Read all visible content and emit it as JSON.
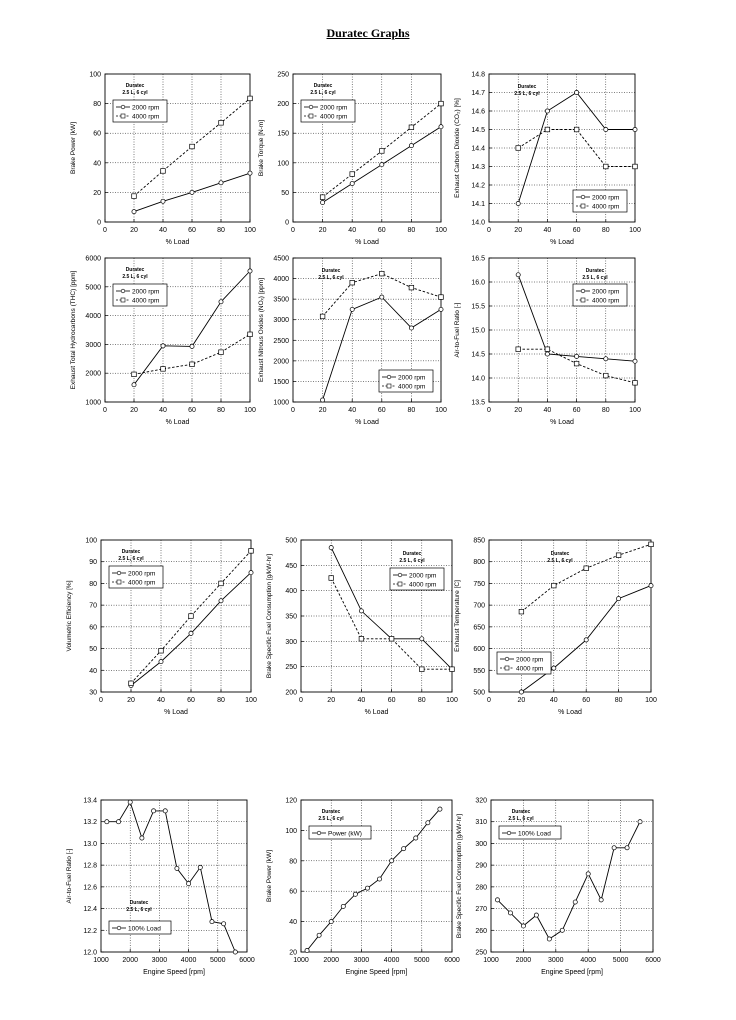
{
  "page": {
    "title": "Duratec Graphs"
  },
  "chart_data": [
    {
      "type": "line",
      "xlabel": "% Load",
      "ylabel": "Brake Power [kW]",
      "xlim": [
        0,
        100
      ],
      "ylim": [
        0,
        100
      ],
      "xticks": [
        0,
        20,
        40,
        60,
        80,
        100
      ],
      "yticks": [
        0,
        20,
        40,
        60,
        80,
        100
      ],
      "annotation": [
        "Duratec",
        "2.5 L, 6 cyl"
      ],
      "legend_pos": "upper-left",
      "x": [
        20,
        40,
        60,
        80,
        100
      ],
      "series": [
        {
          "name": "2000 rpm",
          "style": "solid",
          "marker": "circle",
          "values": [
            7,
            14,
            20,
            26.5,
            33
          ]
        },
        {
          "name": "4000 rpm",
          "style": "dashed",
          "marker": "square",
          "values": [
            17.5,
            34.5,
            51,
            67,
            83.5
          ]
        }
      ]
    },
    {
      "type": "line",
      "xlabel": "% Load",
      "ylabel": "Brake Torque [N-m]",
      "xlim": [
        0,
        100
      ],
      "ylim": [
        0,
        250
      ],
      "xticks": [
        0,
        20,
        40,
        60,
        80,
        100
      ],
      "yticks": [
        0,
        50,
        100,
        150,
        200,
        250
      ],
      "annotation": [
        "Duratec",
        "2.5 L, 6 cyl"
      ],
      "legend_pos": "upper-left",
      "x": [
        20,
        40,
        60,
        80,
        100
      ],
      "series": [
        {
          "name": "2000 rpm",
          "style": "solid",
          "marker": "circle",
          "values": [
            33,
            65,
            97,
            129,
            161
          ]
        },
        {
          "name": "4000 rpm",
          "style": "dashed",
          "marker": "square",
          "values": [
            42,
            81,
            120,
            160,
            200
          ]
        }
      ]
    },
    {
      "type": "line",
      "xlabel": "% Load",
      "ylabel": "Exhaust Carbon Dioxide (CO₂) [%]",
      "xlim": [
        0,
        100
      ],
      "ylim": [
        14,
        14.8
      ],
      "xticks": [
        0,
        20,
        40,
        60,
        80,
        100
      ],
      "yticks": [
        14,
        14.1,
        14.2,
        14.3,
        14.4,
        14.5,
        14.6,
        14.7,
        14.8
      ],
      "ydec": 1,
      "annotation": [
        "Duratec",
        "2.5 L, 6 cyl"
      ],
      "legend_pos": "lower-right",
      "x": [
        20,
        40,
        60,
        80,
        100
      ],
      "series": [
        {
          "name": "2000 rpm",
          "style": "solid",
          "marker": "circle",
          "values": [
            14.1,
            14.6,
            14.7,
            14.5,
            14.5
          ]
        },
        {
          "name": "4000 rpm",
          "style": "dashed",
          "marker": "square",
          "values": [
            14.4,
            14.5,
            14.5,
            14.3,
            14.3
          ]
        }
      ]
    },
    {
      "type": "line",
      "xlabel": "% Load",
      "ylabel": "Exhaust Total Hydrocarbons (THC) [ppm]",
      "xlim": [
        0,
        100
      ],
      "ylim": [
        1000,
        6000
      ],
      "xticks": [
        0,
        20,
        40,
        60,
        80,
        100
      ],
      "yticks": [
        1000,
        2000,
        3000,
        4000,
        5000,
        6000
      ],
      "annotation": [
        "Duratec",
        "2.5 L, 6 cyl"
      ],
      "legend_pos": "upper-left",
      "x": [
        20,
        40,
        60,
        80,
        100
      ],
      "series": [
        {
          "name": "2000 rpm",
          "style": "solid",
          "marker": "circle",
          "values": [
            1600,
            2950,
            2930,
            4480,
            5550
          ]
        },
        {
          "name": "4000 rpm",
          "style": "dashed",
          "marker": "square",
          "values": [
            1960,
            2150,
            2310,
            2730,
            3350
          ]
        }
      ]
    },
    {
      "type": "line",
      "xlabel": "% Load",
      "ylabel": "Exhaust Nitrous Oxides (NOₓ) [ppm]",
      "xlim": [
        0,
        100
      ],
      "ylim": [
        1000,
        4500
      ],
      "xticks": [
        0,
        20,
        40,
        60,
        80,
        100
      ],
      "yticks": [
        1000,
        1500,
        2000,
        2500,
        3000,
        3500,
        4000,
        4500
      ],
      "annotation": [
        "Duratec",
        "2.5 L, 6 cyl"
      ],
      "legend_pos": "lower-right",
      "x": [
        20,
        40,
        60,
        80,
        100
      ],
      "series": [
        {
          "name": "2000 rpm",
          "style": "solid",
          "marker": "circle",
          "values": [
            1050,
            3250,
            3550,
            2800,
            3250
          ]
        },
        {
          "name": "4000 rpm",
          "style": "dashed",
          "marker": "square",
          "values": [
            3080,
            3900,
            4120,
            3780,
            3550
          ]
        }
      ]
    },
    {
      "type": "line",
      "xlabel": "% Load",
      "ylabel": "Air-to-Fuel Ratio [-]",
      "xlim": [
        0,
        100
      ],
      "ylim": [
        13.5,
        16.5
      ],
      "xticks": [
        0,
        20,
        40,
        60,
        80,
        100
      ],
      "yticks": [
        13.5,
        14,
        14.5,
        15,
        15.5,
        16,
        16.5
      ],
      "ydec": 1,
      "annotation": [
        "Duratec",
        "2.5 L, 6 cyl"
      ],
      "legend_pos": "upper-right",
      "x": [
        20,
        40,
        60,
        80,
        100
      ],
      "series": [
        {
          "name": "2000 rpm",
          "style": "solid",
          "marker": "circle",
          "values": [
            16.15,
            14.5,
            14.45,
            14.4,
            14.35
          ]
        },
        {
          "name": "4000 rpm",
          "style": "dashed",
          "marker": "square",
          "values": [
            14.6,
            14.6,
            14.3,
            14.05,
            13.9
          ]
        }
      ]
    },
    {
      "type": "line",
      "xlabel": "% Load",
      "ylabel": "Volumetric Efficiency [%]",
      "xlim": [
        0,
        100
      ],
      "ylim": [
        30,
        100
      ],
      "xticks": [
        0,
        20,
        40,
        60,
        80,
        100
      ],
      "yticks": [
        30,
        40,
        50,
        60,
        70,
        80,
        90,
        100
      ],
      "annotation": [
        "Duratec",
        "2.5 L, 6 cyl"
      ],
      "legend_pos": "upper-left",
      "x": [
        20,
        40,
        60,
        80,
        100
      ],
      "series": [
        {
          "name": "2000 rpm",
          "style": "solid",
          "marker": "circle",
          "values": [
            33,
            44,
            57,
            72,
            85
          ]
        },
        {
          "name": "4000 rpm",
          "style": "dashed",
          "marker": "square",
          "values": [
            34,
            49,
            65,
            80,
            95
          ]
        }
      ]
    },
    {
      "type": "line",
      "xlabel": "% Load",
      "ylabel": "Brake Specific Fuel Consumption [g/kW-hr]",
      "xlim": [
        0,
        100
      ],
      "ylim": [
        200,
        500
      ],
      "xticks": [
        0,
        20,
        40,
        60,
        80,
        100
      ],
      "yticks": [
        200,
        250,
        300,
        350,
        400,
        450,
        500
      ],
      "annotation": [
        "Duratec",
        "2.5 L, 6 cyl"
      ],
      "legend_pos": "upper-right",
      "x": [
        20,
        40,
        60,
        80,
        100
      ],
      "series": [
        {
          "name": "2000 rpm",
          "style": "solid",
          "marker": "circle",
          "values": [
            485,
            360,
            305,
            305,
            245
          ]
        },
        {
          "name": "4000 rpm",
          "style": "dashed",
          "marker": "square",
          "values": [
            425,
            305,
            305,
            245,
            245
          ]
        }
      ]
    },
    {
      "type": "line",
      "xlabel": "% Load",
      "ylabel": "Exhaust Temperature [C]",
      "xlim": [
        0,
        100
      ],
      "ylim": [
        500,
        850
      ],
      "xticks": [
        0,
        20,
        40,
        60,
        80,
        100
      ],
      "yticks": [
        500,
        550,
        600,
        650,
        700,
        750,
        800,
        850
      ],
      "annotation": [
        "Duratec",
        "2.5 L, 6 cyl"
      ],
      "legend_pos": "lower-left",
      "x": [
        20,
        40,
        60,
        80,
        100
      ],
      "series": [
        {
          "name": "2000 rpm",
          "style": "solid",
          "marker": "circle",
          "values": [
            500,
            555,
            620,
            715,
            745
          ]
        },
        {
          "name": "4000 rpm",
          "style": "dashed",
          "marker": "square",
          "values": [
            685,
            745,
            785,
            815,
            840
          ]
        }
      ]
    },
    {
      "type": "line",
      "xlabel": "Engine Speed [rpm]",
      "ylabel": "Air-to-Fuel Ratio [-]",
      "xlim": [
        1000,
        6000
      ],
      "ylim": [
        12,
        13.4
      ],
      "xticks": [
        1000,
        2000,
        3000,
        4000,
        5000,
        6000
      ],
      "yticks": [
        12,
        12.2,
        12.4,
        12.6,
        12.8,
        13,
        13.2,
        13.4
      ],
      "ydec": 1,
      "annotation": [
        "Duratec",
        "2.5 L, 6 cyl"
      ],
      "legend_pos": "lower-left",
      "annotation_pos": "lower-left",
      "x": [
        1200,
        1600,
        2000,
        2400,
        2800,
        3200,
        3600,
        4000,
        4400,
        4800,
        5200,
        5600
      ],
      "series": [
        {
          "name": "100% Load",
          "style": "solid",
          "marker": "circle",
          "values": [
            13.2,
            13.2,
            13.38,
            13.05,
            13.3,
            13.3,
            12.77,
            12.63,
            12.78,
            12.28,
            12.26,
            12.0
          ]
        }
      ]
    },
    {
      "type": "line",
      "xlabel": "Engine Speed [rpm]",
      "ylabel": "Brake Power [kW]",
      "xlim": [
        1000,
        6000
      ],
      "ylim": [
        20,
        120
      ],
      "xticks": [
        1000,
        2000,
        3000,
        4000,
        5000,
        6000
      ],
      "yticks": [
        20,
        40,
        60,
        80,
        100,
        120
      ],
      "annotation": [
        "Duratec",
        "2.5 L, 6 cyl"
      ],
      "legend_pos": "upper-left",
      "x": [
        1200,
        1600,
        2000,
        2400,
        2800,
        3200,
        3600,
        4000,
        4400,
        4800,
        5200,
        5600
      ],
      "series": [
        {
          "name": "Power (kW)",
          "style": "solid",
          "marker": "circle",
          "values": [
            21,
            31,
            40,
            50,
            58,
            62,
            68,
            80,
            88,
            95,
            105,
            114
          ]
        }
      ]
    },
    {
      "type": "line",
      "xlabel": "Engine Speed [rpm]",
      "ylabel": "Brake Specific Fuel Consumption [g/kW-hr]",
      "xlim": [
        1000,
        6000
      ],
      "ylim": [
        250,
        320
      ],
      "xticks": [
        1000,
        2000,
        3000,
        4000,
        5000,
        6000
      ],
      "yticks": [
        250,
        260,
        270,
        280,
        290,
        300,
        310,
        320
      ],
      "annotation": [
        "Duratec",
        "2.5 L, 6 cyl"
      ],
      "legend_pos": "upper-left",
      "x": [
        1200,
        1600,
        2000,
        2400,
        2800,
        3200,
        3600,
        4000,
        4400,
        4800,
        5200,
        5600
      ],
      "series": [
        {
          "name": "100% Load",
          "style": "solid",
          "marker": "circle",
          "values": [
            274,
            268,
            262,
            267,
            256,
            260,
            273,
            286,
            274,
            298,
            298,
            310
          ]
        }
      ]
    }
  ]
}
